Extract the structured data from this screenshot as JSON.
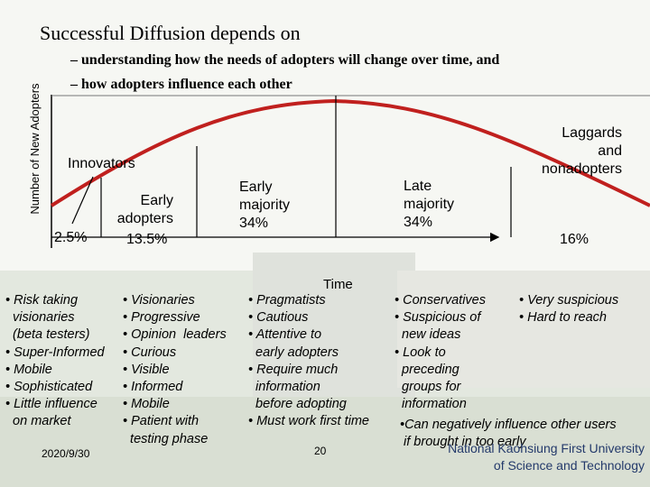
{
  "title": "Successful Diffusion depends on",
  "subpoints": [
    "– understanding how the needs of adopters will change over time, and",
    "– how adopters influence each other"
  ],
  "y_axis_label": "Number of New Adopters",
  "x_axis_label": "Time",
  "segments": {
    "innovators": {
      "heading": "Innovators",
      "pct": "2.5%"
    },
    "early_adopters": {
      "line1": "Early",
      "line2": "adopters",
      "pct": "13.5%"
    },
    "early_majority": {
      "line1": "Early",
      "line2": "majority",
      "pct": "34%"
    },
    "late_majority": {
      "line1": "Late",
      "line2": "majority",
      "pct": "34%"
    },
    "laggards": {
      "line1": "Laggards",
      "line2": "and",
      "line3": "nonadopters",
      "pct": "16%"
    }
  },
  "traits": {
    "innovators": "• Risk taking\n  visionaries\n  (beta testers)\n• Super-Informed\n• Mobile\n• Sophisticated\n• Little influence\n  on market",
    "early_adopters": "• Visionaries\n• Progressive\n• Opinion  leaders\n• Curious\n• Visible\n• Informed\n• Mobile\n• Patient with\n  testing phase",
    "early_majority": "• Pragmatists\n• Cautious\n• Attentive to\n  early adopters\n• Require much\n  information\n  before adopting\n• Must work first time",
    "late_majority": "• Conservatives\n• Suspicious of\n  new ideas\n• Look to\n  preceding\n  groups for\n  information",
    "laggards": "• Very suspicious\n• Hard to reach",
    "note": "•Can negatively influence other users\n if brought in too early"
  },
  "footer": {
    "date": "2020/9/30",
    "page": "20",
    "univ_line1": "National Kaohsiung First University",
    "univ_line2": "of Science and Technology"
  },
  "colors": {
    "curve": "#c0201e",
    "axis": "#000000",
    "university_text": "#243a6b"
  }
}
